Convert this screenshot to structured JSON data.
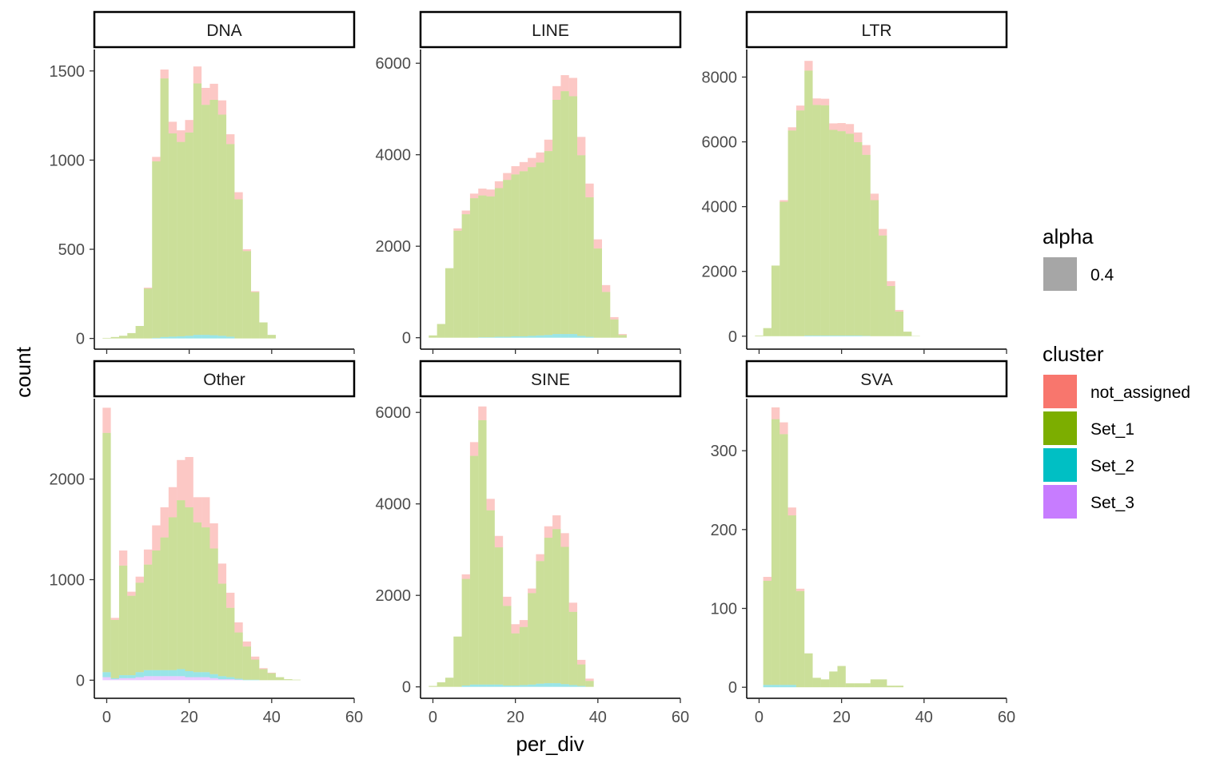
{
  "chart_data": {
    "type": "bar",
    "subtype": "stacked histogram, faceted",
    "xlabel": "per_div",
    "ylabel": "count",
    "xlim": [
      -3,
      60
    ],
    "x_ticks": [
      0,
      20,
      40,
      60
    ],
    "bin_width": 2,
    "bins_x_center": [
      0,
      2,
      4,
      6,
      8,
      10,
      12,
      14,
      16,
      18,
      20,
      22,
      24,
      26,
      28,
      30,
      32,
      34,
      36,
      38,
      40,
      42,
      44,
      46,
      48,
      50
    ],
    "series_order": [
      "not_assigned",
      "Set_1",
      "Set_2",
      "Set_3"
    ],
    "colors": {
      "not_assigned": "#F8766D",
      "Set_1": "#7CAE00",
      "Set_2": "#00BFC4",
      "Set_3": "#C77CFF"
    },
    "alpha": 0.4,
    "legends": [
      {
        "title": "alpha",
        "items": [
          {
            "label": "0.4",
            "color": "#A6A6A6"
          }
        ]
      },
      {
        "title": "cluster",
        "items": [
          {
            "label": "not_assigned",
            "color": "#F8766D"
          },
          {
            "label": "Set_1",
            "color": "#7CAE00"
          },
          {
            "label": "Set_2",
            "color": "#00BFC4"
          },
          {
            "label": "Set_3",
            "color": "#C77CFF"
          }
        ]
      }
    ],
    "legend_position": "right",
    "grid": false,
    "facets": [
      {
        "label": "DNA",
        "ylim": [
          -60,
          1620
        ],
        "y_ticks": [
          0,
          500,
          1000,
          1500
        ],
        "series": [
          {
            "name": "not_assigned",
            "values": [
              0,
              0,
              0,
              0,
              0,
              5,
              25,
              50,
              65,
              65,
              70,
              95,
              95,
              90,
              80,
              55,
              40,
              10,
              5,
              0,
              0,
              0,
              0,
              0,
              0,
              0
            ]
          },
          {
            "name": "Set_1",
            "values": [
              3,
              8,
              15,
              30,
              70,
              280,
              990,
              1450,
              1140,
              1090,
              1140,
              1410,
              1290,
              1320,
              1240,
              1080,
              780,
              490,
              260,
              90,
              20,
              0,
              0,
              0,
              0,
              0
            ]
          },
          {
            "name": "Set_2",
            "values": [
              0,
              0,
              0,
              0,
              0,
              0,
              3,
              8,
              10,
              12,
              15,
              20,
              20,
              18,
              15,
              10,
              0,
              0,
              0,
              0,
              0,
              0,
              0,
              0,
              0,
              0
            ]
          },
          {
            "name": "Set_3",
            "values": [
              0,
              0,
              0,
              0,
              0,
              0,
              0,
              0,
              0,
              0,
              0,
              0,
              0,
              0,
              0,
              0,
              0,
              0,
              0,
              0,
              0,
              0,
              0,
              0,
              0,
              0
            ]
          }
        ]
      },
      {
        "label": "LINE",
        "ylim": [
          -250,
          6300
        ],
        "y_ticks": [
          0,
          2000,
          4000,
          6000
        ],
        "series": [
          {
            "name": "not_assigned",
            "values": [
              0,
              0,
              0,
              50,
              80,
              100,
              150,
              150,
              150,
              150,
              180,
              200,
              200,
              220,
              250,
              300,
              350,
              400,
              400,
              300,
              200,
              150,
              50,
              20,
              0,
              0
            ]
          },
          {
            "name": "Set_1",
            "values": [
              50,
              300,
              1520,
              2340,
              2700,
              3050,
              3100,
              3080,
              3250,
              3430,
              3540,
              3610,
              3690,
              3780,
              4020,
              5120,
              5310,
              5200,
              3950,
              3050,
              1950,
              1000,
              400,
              60,
              0,
              0
            ]
          },
          {
            "name": "Set_2",
            "values": [
              0,
              0,
              0,
              0,
              0,
              0,
              10,
              10,
              20,
              20,
              30,
              30,
              40,
              50,
              60,
              80,
              80,
              80,
              40,
              20,
              0,
              0,
              0,
              0,
              0,
              0
            ]
          },
          {
            "name": "Set_3",
            "values": [
              0,
              0,
              0,
              0,
              0,
              0,
              0,
              0,
              0,
              0,
              0,
              0,
              0,
              0,
              0,
              0,
              0,
              0,
              0,
              0,
              0,
              0,
              0,
              0,
              0,
              0
            ]
          }
        ]
      },
      {
        "label": "LTR",
        "ylim": [
          -400,
          8850
        ],
        "y_ticks": [
          0,
          2000,
          4000,
          6000,
          8000
        ],
        "series": [
          {
            "name": "not_assigned",
            "values": [
              0,
              0,
              0,
              50,
              100,
              150,
              300,
              200,
              200,
              200,
              250,
              300,
              300,
              300,
              200,
              200,
              150,
              50,
              0,
              0,
              0,
              0,
              0,
              0,
              0,
              0
            ]
          },
          {
            "name": "Set_1",
            "values": [
              20,
              250,
              2180,
              4150,
              6350,
              6970,
              8180,
              7120,
              7110,
              6350,
              6310,
              6230,
              5970,
              5590,
              4200,
              3110,
              1550,
              760,
              140,
              10,
              0,
              0,
              0,
              0,
              0,
              0
            ]
          },
          {
            "name": "Set_2",
            "values": [
              0,
              0,
              0,
              0,
              0,
              0,
              20,
              20,
              20,
              20,
              20,
              20,
              20,
              10,
              0,
              0,
              0,
              0,
              0,
              0,
              0,
              0,
              0,
              0,
              0,
              0
            ]
          },
          {
            "name": "Set_3",
            "values": [
              0,
              0,
              0,
              0,
              0,
              0,
              0,
              0,
              0,
              0,
              0,
              0,
              0,
              0,
              0,
              0,
              0,
              0,
              0,
              0,
              0,
              0,
              0,
              0,
              0,
              0
            ]
          }
        ]
      },
      {
        "label": "Other",
        "ylim": [
          -180,
          2800
        ],
        "y_ticks": [
          0,
          1000,
          2000
        ],
        "series": [
          {
            "name": "not_assigned",
            "values": [
              250,
              20,
              150,
              40,
              60,
              150,
              250,
              300,
              300,
              400,
              500,
              250,
              300,
              250,
              200,
              150,
              100,
              50,
              30,
              10,
              5,
              0,
              0,
              0,
              0,
              0
            ]
          },
          {
            "name": "Set_1",
            "values": [
              2380,
              580,
              1090,
              790,
              890,
              1050,
              1190,
              1320,
              1520,
              1680,
              1630,
              1490,
              1440,
              1250,
              920,
              690,
              460,
              330,
              200,
              110,
              70,
              30,
              10,
              5,
              0,
              0
            ]
          },
          {
            "name": "Set_2",
            "values": [
              50,
              10,
              30,
              30,
              50,
              60,
              60,
              60,
              60,
              70,
              60,
              50,
              50,
              40,
              30,
              20,
              10,
              5,
              5,
              0,
              0,
              0,
              0,
              0,
              0,
              0
            ]
          },
          {
            "name": "Set_3",
            "values": [
              30,
              10,
              20,
              20,
              30,
              40,
              40,
              40,
              40,
              40,
              30,
              30,
              30,
              20,
              10,
              10,
              5,
              0,
              0,
              0,
              0,
              0,
              0,
              0,
              0,
              0
            ]
          }
        ]
      },
      {
        "label": "SINE",
        "ylim": [
          -250,
          6300
        ],
        "y_ticks": [
          0,
          2000,
          4000,
          6000
        ],
        "series": [
          {
            "name": "not_assigned",
            "values": [
              0,
              0,
              0,
              0,
              100,
              300,
              300,
              250,
              250,
              200,
              200,
              150,
              100,
              150,
              250,
              300,
              300,
              200,
              100,
              50,
              0,
              0,
              0,
              0,
              0,
              0
            ]
          },
          {
            "name": "Set_1",
            "values": [
              20,
              100,
              200,
              1100,
              2330,
              5000,
              5780,
              3810,
              3000,
              1740,
              1140,
              1270,
              2000,
              2680,
              3180,
              3370,
              3000,
              1600,
              470,
              130,
              0,
              0,
              0,
              0,
              0,
              0
            ]
          },
          {
            "name": "Set_2",
            "values": [
              0,
              0,
              0,
              0,
              30,
              50,
              50,
              50,
              50,
              30,
              30,
              40,
              50,
              70,
              80,
              80,
              60,
              40,
              20,
              0,
              0,
              0,
              0,
              0,
              0,
              0
            ]
          },
          {
            "name": "Set_3",
            "values": [
              0,
              0,
              0,
              0,
              0,
              0,
              0,
              0,
              0,
              0,
              0,
              0,
              0,
              0,
              0,
              0,
              0,
              0,
              0,
              0,
              0,
              0,
              0,
              0,
              0,
              0
            ]
          }
        ]
      },
      {
        "label": "SVA",
        "ylim": [
          -14,
          366
        ],
        "y_ticks": [
          0,
          100,
          200,
          300
        ],
        "series": [
          {
            "name": "not_assigned",
            "values": [
              0,
              5,
              15,
              15,
              10,
              3,
              0,
              0,
              0,
              0,
              0,
              0,
              0,
              0,
              0,
              0,
              0,
              0,
              0,
              0,
              0,
              0,
              0,
              0,
              0,
              0
            ]
          },
          {
            "name": "Set_1",
            "values": [
              0,
              132,
              337,
              318,
              215,
              122,
              43,
              12,
              10,
              20,
              27,
              5,
              5,
              5,
              10,
              10,
              2,
              2,
              0,
              0,
              0,
              0,
              0,
              0,
              0,
              0
            ]
          },
          {
            "name": "Set_2",
            "values": [
              0,
              3,
              3,
              3,
              3,
              0,
              0,
              0,
              0,
              0,
              0,
              0,
              0,
              0,
              0,
              0,
              0,
              0,
              0,
              0,
              0,
              0,
              0,
              0,
              0,
              0
            ]
          },
          {
            "name": "Set_3",
            "values": [
              0,
              0,
              0,
              0,
              0,
              0,
              0,
              0,
              0,
              0,
              0,
              0,
              0,
              0,
              0,
              0,
              0,
              0,
              0,
              0,
              0,
              0,
              0,
              0,
              0,
              0
            ]
          }
        ]
      }
    ]
  }
}
